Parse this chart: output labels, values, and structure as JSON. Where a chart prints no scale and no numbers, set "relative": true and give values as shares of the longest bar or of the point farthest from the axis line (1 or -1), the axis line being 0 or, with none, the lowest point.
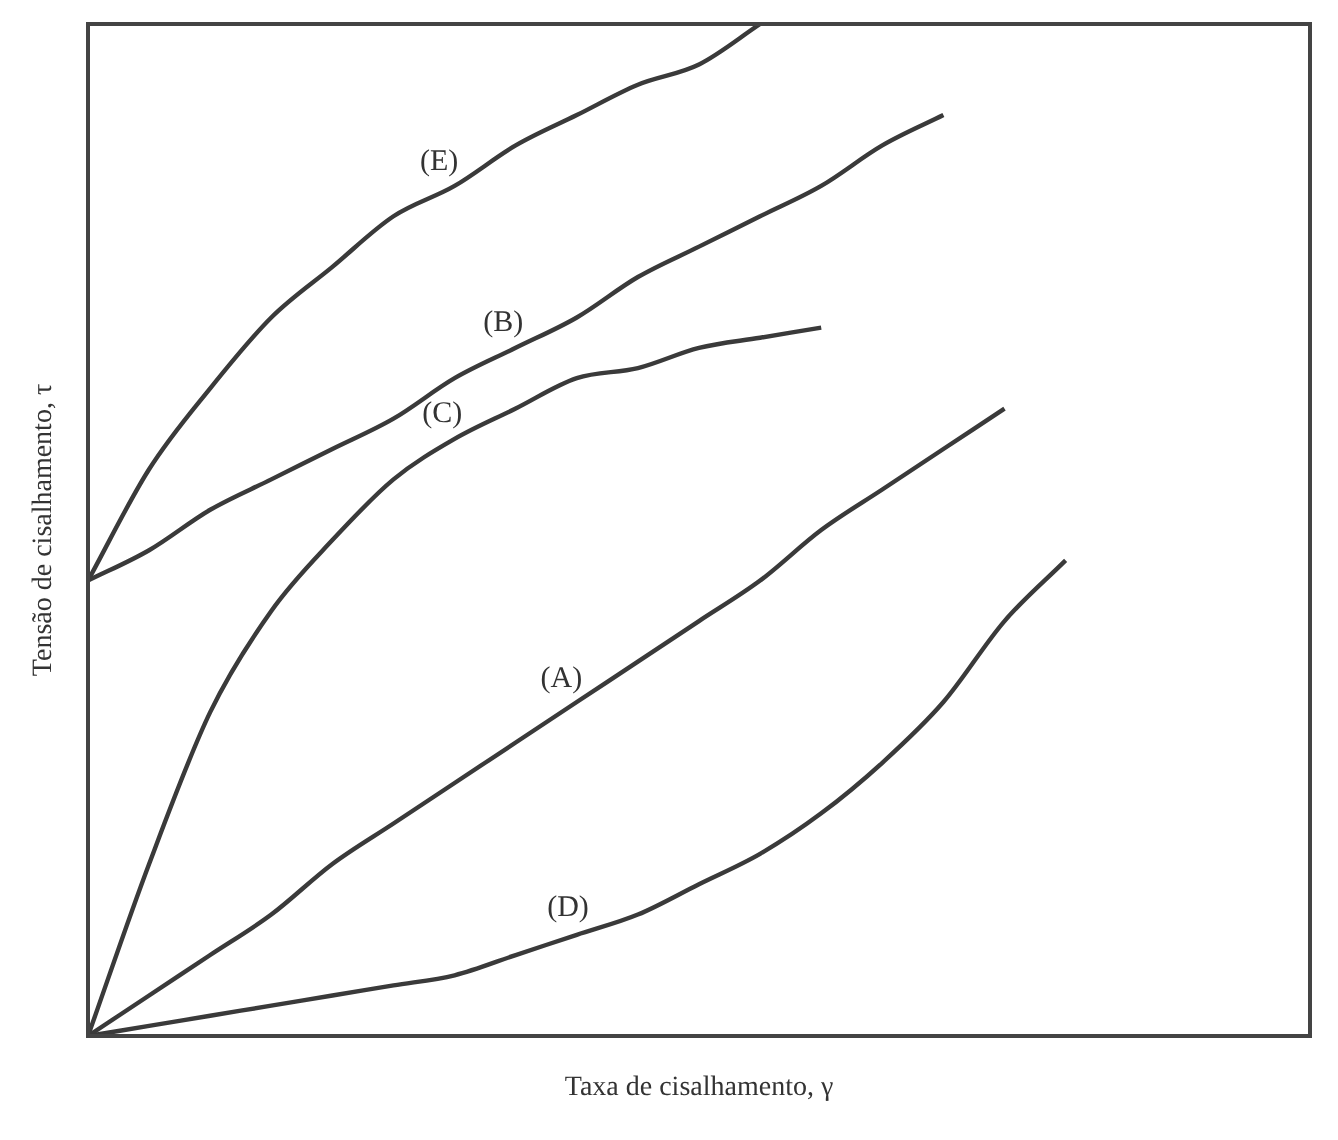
{
  "chart_data": {
    "type": "line",
    "relative": true,
    "xlabel": "Taxa de cisalhamento, γ",
    "ylabel": "Tensão de cisalhamento, τ",
    "legend": false,
    "marker": "none",
    "line_style": "solid",
    "categories": [
      null,
      null,
      null,
      null,
      null,
      null,
      null,
      null,
      null,
      null,
      null,
      null,
      null,
      null,
      null,
      null,
      null,
      null,
      null,
      null,
      null
    ],
    "series": [
      {
        "name": "(E)",
        "color": "#3a3a3a",
        "values": [
          0.45,
          0.56,
          0.64,
          0.71,
          0.76,
          0.81,
          0.84,
          0.88,
          0.91,
          0.94,
          0.96,
          1,
          null,
          null,
          null,
          null,
          null,
          null,
          null,
          null,
          null
        ]
      },
      {
        "name": "(B)",
        "color": "#3a3a3a",
        "values": [
          0.45,
          0.48,
          0.52,
          0.55,
          0.58,
          0.61,
          0.65,
          0.68,
          0.71,
          0.75,
          0.78,
          0.81,
          0.84,
          0.88,
          0.91,
          null,
          null,
          null,
          null,
          null,
          null
        ]
      },
      {
        "name": "(C)",
        "color": "#3a3a3a",
        "values": [
          0,
          0.17,
          0.32,
          0.42,
          0.49,
          0.55,
          0.59,
          0.62,
          0.65,
          0.66,
          0.68,
          0.69,
          0.7,
          null,
          null,
          null,
          null,
          null,
          null,
          null,
          null
        ]
      },
      {
        "name": "(A)",
        "color": "#3a3a3a",
        "values": [
          0,
          0.04,
          0.08,
          0.12,
          0.17,
          0.21,
          0.25,
          0.29,
          0.33,
          0.37,
          0.41,
          0.45,
          0.5,
          0.54,
          0.58,
          0.62,
          null,
          null,
          null,
          null,
          null
        ]
      },
      {
        "name": "(D)",
        "color": "#3a3a3a",
        "values": [
          0,
          0.01,
          0.02,
          0.03,
          0.04,
          0.05,
          0.06,
          0.08,
          0.1,
          0.12,
          0.15,
          0.18,
          0.22,
          0.27,
          0.33,
          0.41,
          0.47,
          null,
          null,
          null,
          null
        ]
      }
    ]
  }
}
